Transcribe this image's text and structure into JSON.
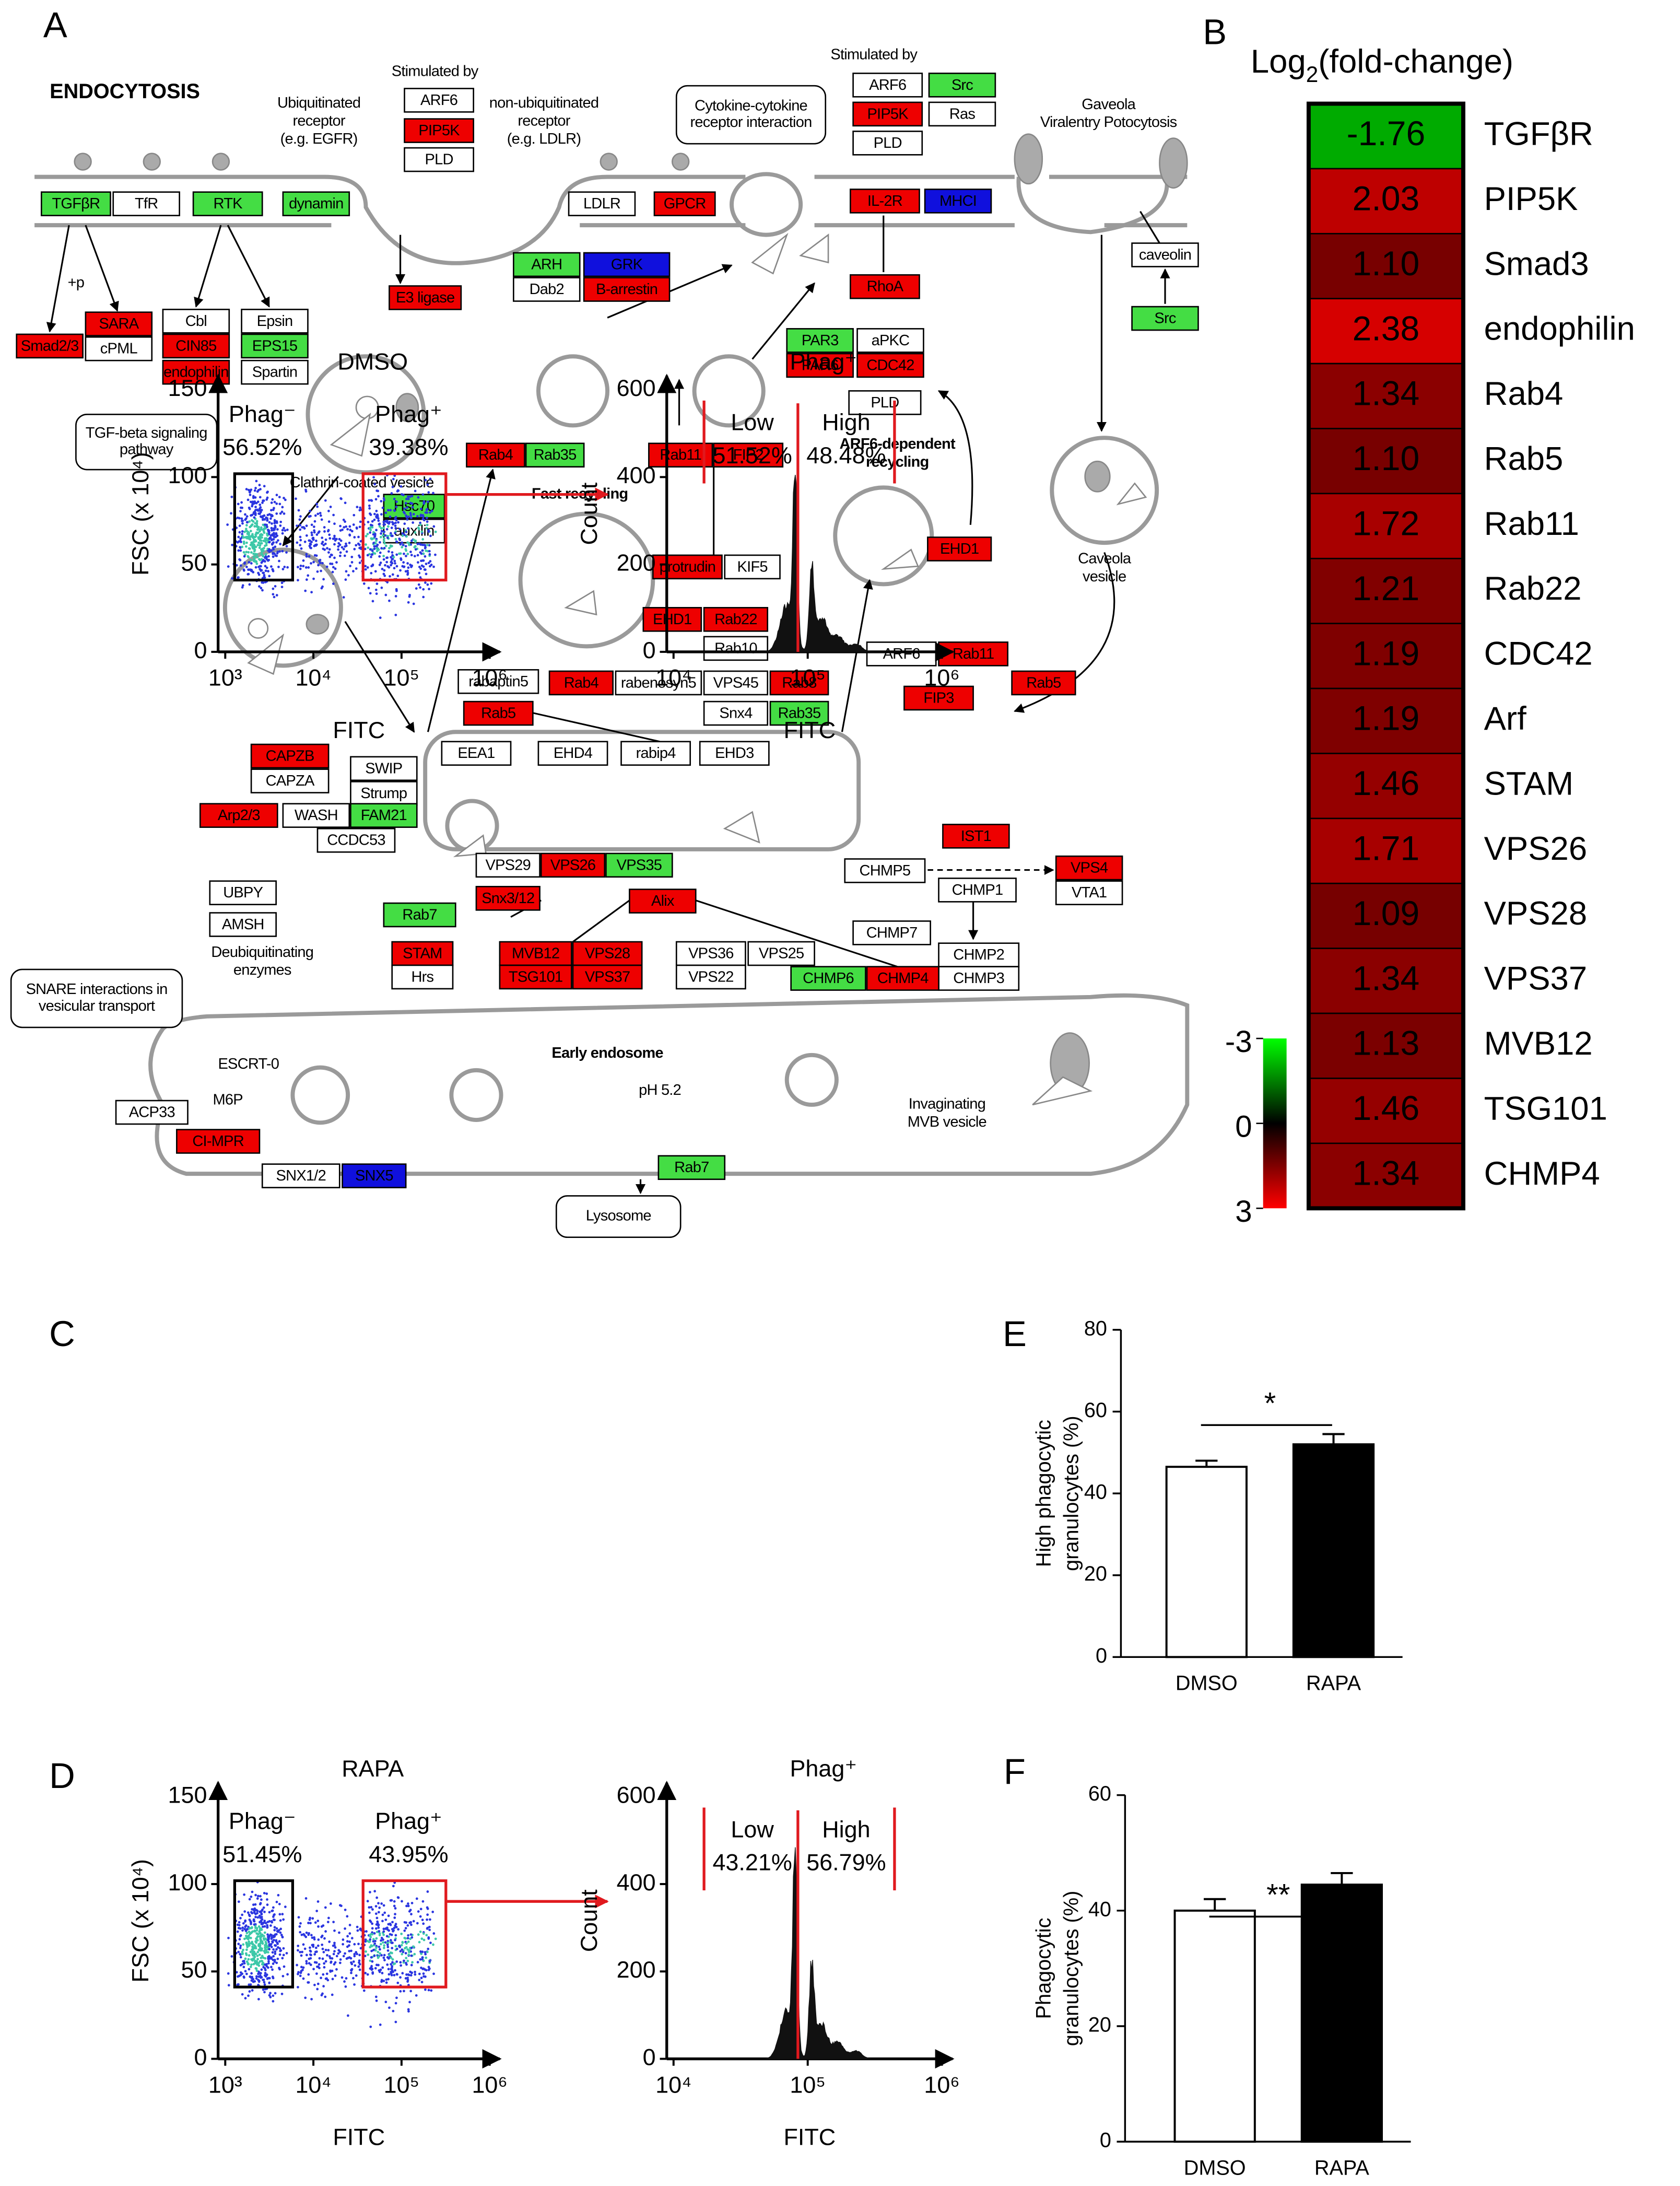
{
  "panel_a": {
    "letter": "A",
    "title": "ENDOCYTOSIS",
    "genes": [
      {
        "label": "TGFβR",
        "color": "#44dd44"
      },
      {
        "label": "TfR",
        "color": "#ffffff"
      },
      {
        "label": "RTK",
        "color": "#44dd44"
      },
      {
        "label": "dynamin",
        "color": "#44dd44"
      },
      {
        "label": "ARF6",
        "color": "#ffffff"
      },
      {
        "label": "PIP5K",
        "color": "#ee0000"
      },
      {
        "label": "PLD",
        "color": "#ffffff"
      },
      {
        "label": "LDLR",
        "color": "#ffffff"
      },
      {
        "label": "GPCR",
        "color": "#ee0000"
      },
      {
        "label": "ARH",
        "color": "#44dd44"
      },
      {
        "label": "GRK",
        "color": "#1010dd"
      },
      {
        "label": "Dab2",
        "color": "#ffffff"
      },
      {
        "label": "B-arrestin",
        "color": "#ee0000"
      },
      {
        "label": "E3 ligase",
        "color": "#ee0000"
      },
      {
        "label": "ARF6",
        "color": "#ffffff"
      },
      {
        "label": "Src",
        "color": "#44dd44"
      },
      {
        "label": "PIP5K",
        "color": "#ee0000"
      },
      {
        "label": "Ras",
        "color": "#ffffff"
      },
      {
        "label": "PLD",
        "color": "#ffffff"
      },
      {
        "label": "IL-2R",
        "color": "#ee0000"
      },
      {
        "label": "MHCI",
        "color": "#1010dd"
      },
      {
        "label": "RhoA",
        "color": "#ee0000"
      },
      {
        "label": "caveolin",
        "color": "#ffffff"
      },
      {
        "label": "Src",
        "color": "#44dd44"
      },
      {
        "label": "Smad2/3",
        "color": "#ee0000"
      },
      {
        "label": "SARA",
        "color": "#ee0000"
      },
      {
        "label": "cPML",
        "color": "#ffffff"
      },
      {
        "label": "Cbl",
        "color": "#ffffff"
      },
      {
        "label": "CIN85",
        "color": "#ee0000"
      },
      {
        "label": "endophilin",
        "color": "#ee0000"
      },
      {
        "label": "Epsin",
        "color": "#ffffff"
      },
      {
        "label": "EPS15",
        "color": "#44dd44"
      },
      {
        "label": "Spartin",
        "color": "#ffffff"
      },
      {
        "label": "PAR3",
        "color": "#44dd44"
      },
      {
        "label": "aPKC",
        "color": "#ffffff"
      },
      {
        "label": "PAR6",
        "color": "#ee0000"
      },
      {
        "label": "CDC42",
        "color": "#ee0000"
      },
      {
        "label": "PLD",
        "color": "#ffffff"
      },
      {
        "label": "Rab4",
        "color": "#ee0000"
      },
      {
        "label": "Rab35",
        "color": "#44dd44"
      },
      {
        "label": "Rab11",
        "color": "#ee0000"
      },
      {
        "label": "FIP2",
        "color": "#ee0000"
      },
      {
        "label": "Hsc70",
        "color": "#44dd44"
      },
      {
        "label": "auxilin",
        "color": "#ffffff"
      },
      {
        "label": "protrudin",
        "color": "#ee0000"
      },
      {
        "label": "KIF5",
        "color": "#ffffff"
      },
      {
        "label": "EHD1",
        "color": "#ee0000"
      },
      {
        "label": "EHD1",
        "color": "#ee0000"
      },
      {
        "label": "Rab22",
        "color": "#ee0000"
      },
      {
        "label": "Rab10",
        "color": "#ffffff"
      },
      {
        "label": "ARF6",
        "color": "#ffffff"
      },
      {
        "label": "Rab11",
        "color": "#ee0000"
      },
      {
        "label": "FIP3",
        "color": "#ee0000"
      },
      {
        "label": "Rab5",
        "color": "#ee0000"
      },
      {
        "label": "rabaptin5",
        "color": "#ffffff"
      },
      {
        "label": "Rab4",
        "color": "#ee0000"
      },
      {
        "label": "rabenosyn5",
        "color": "#ffffff"
      },
      {
        "label": "VPS45",
        "color": "#ffffff"
      },
      {
        "label": "Rab8",
        "color": "#ee0000"
      },
      {
        "label": "Rab5",
        "color": "#ee0000"
      },
      {
        "label": "Snx4",
        "color": "#ffffff"
      },
      {
        "label": "Rab35",
        "color": "#44dd44"
      },
      {
        "label": "EEA1",
        "color": "#ffffff"
      },
      {
        "label": "EHD4",
        "color": "#ffffff"
      },
      {
        "label": "rabip4",
        "color": "#ffffff"
      },
      {
        "label": "EHD3",
        "color": "#ffffff"
      },
      {
        "label": "CAPZB",
        "color": "#ee0000"
      },
      {
        "label": "CAPZA",
        "color": "#ffffff"
      },
      {
        "label": "SWIP",
        "color": "#ffffff"
      },
      {
        "label": "Strump",
        "color": "#ffffff"
      },
      {
        "label": "Arp2/3",
        "color": "#ee0000"
      },
      {
        "label": "WASH",
        "color": "#ffffff"
      },
      {
        "label": "FAM21",
        "color": "#44dd44"
      },
      {
        "label": "CCDC53",
        "color": "#ffffff"
      },
      {
        "label": "IST1",
        "color": "#ee0000"
      },
      {
        "label": "CHMP5",
        "color": "#ffffff"
      },
      {
        "label": "VPS4",
        "color": "#ee0000"
      },
      {
        "label": "CHMP1",
        "color": "#ffffff"
      },
      {
        "label": "VTA1",
        "color": "#ffffff"
      },
      {
        "label": "VPS29",
        "color": "#ffffff"
      },
      {
        "label": "VPS26",
        "color": "#ee0000"
      },
      {
        "label": "VPS35",
        "color": "#44dd44"
      },
      {
        "label": "UBPY",
        "color": "#ffffff"
      },
      {
        "label": "Snx3/12",
        "color": "#ee0000"
      },
      {
        "label": "Alix",
        "color": "#ee0000"
      },
      {
        "label": "AMSH",
        "color": "#ffffff"
      },
      {
        "label": "Rab7",
        "color": "#44dd44"
      },
      {
        "label": "CHMP7",
        "color": "#ffffff"
      },
      {
        "label": "STAM",
        "color": "#ee0000"
      },
      {
        "label": "Hrs",
        "color": "#ffffff"
      },
      {
        "label": "MVB12",
        "color": "#ee0000"
      },
      {
        "label": "VPS28",
        "color": "#ee0000"
      },
      {
        "label": "TSG101",
        "color": "#ee0000"
      },
      {
        "label": "VPS37",
        "color": "#ee0000"
      },
      {
        "label": "VPS36",
        "color": "#ffffff"
      },
      {
        "label": "VPS25",
        "color": "#ffffff"
      },
      {
        "label": "VPS22",
        "color": "#ffffff"
      },
      {
        "label": "CHMP2",
        "color": "#ffffff"
      },
      {
        "label": "CHMP3",
        "color": "#ffffff"
      },
      {
        "label": "CHMP6",
        "color": "#44dd44"
      },
      {
        "label": "CHMP4",
        "color": "#ee0000"
      },
      {
        "label": "ACP33",
        "color": "#ffffff"
      },
      {
        "label": "CI-MPR",
        "color": "#ee0000"
      },
      {
        "label": "SNX1/2",
        "color": "#ffffff"
      },
      {
        "label": "SNX5",
        "color": "#1010dd"
      },
      {
        "label": "Rab7",
        "color": "#44dd44"
      }
    ],
    "pathways": [
      {
        "lines": [
          "Cytokine-cytokine",
          "receptor interaction"
        ]
      },
      {
        "lines": [
          "TGF-beta signaling",
          "pathway"
        ]
      },
      {
        "lines": [
          "SNARE interactions in",
          "vesicular transport"
        ]
      },
      {
        "lines": [
          "Lysosome"
        ]
      }
    ],
    "notes": [
      {
        "lines": [
          "Stimulated by"
        ]
      },
      {
        "lines": [
          "Ubiquitinated",
          "receptor",
          "(e.g. EGFR)"
        ]
      },
      {
        "lines": [
          "non-ubiquitinated",
          "receptor",
          "(e.g. LDLR)"
        ]
      },
      {
        "lines": [
          "Stimulated by"
        ]
      },
      {
        "lines": [
          "Gaveola",
          "Viralentry Potocytosis"
        ]
      },
      {
        "lines": [
          "+p"
        ]
      },
      {
        "lines": [
          "Clathrin-coated vesicle"
        ]
      },
      {
        "lines": [
          "Fast recycling"
        ]
      },
      {
        "lines": [
          "ARF6-dependent",
          "recycling"
        ]
      },
      {
        "lines": [
          "Caveola",
          "vesicle"
        ]
      },
      {
        "lines": [
          "Deubiquitinating",
          "enzymes"
        ]
      },
      {
        "lines": [
          "ESCRT-0"
        ]
      },
      {
        "lines": [
          "M6P"
        ]
      },
      {
        "lines": [
          "Early endosome"
        ]
      },
      {
        "lines": [
          "pH 5.2"
        ]
      },
      {
        "lines": [
          "Invaginating",
          "MVB vesicle"
        ]
      }
    ]
  },
  "panel_b": {
    "letter": "B",
    "title": {
      "base": "Log",
      "sub": "2",
      "rest": "(fold-change)"
    },
    "genes": [
      "TGFβR",
      "PIP5K",
      "Smad3",
      "endophilin",
      "Rab4",
      "Rab5",
      "Rab11",
      "Rab22",
      "CDC42",
      "Arf",
      "STAM",
      "VPS26",
      "VPS28",
      "VPS37",
      "MVB12",
      "TSG101",
      "CHMP4"
    ],
    "values": [
      -1.76,
      2.03,
      1.1,
      2.38,
      1.34,
      1.1,
      1.72,
      1.21,
      1.19,
      1.19,
      1.46,
      1.71,
      1.09,
      1.34,
      1.13,
      1.46,
      1.34
    ],
    "value_labels": [
      "-1.76",
      "2.03",
      "1.10",
      "2.38",
      "1.34",
      "1.10",
      "1.72",
      "1.21",
      "1.19",
      "1.19",
      "1.46",
      "1.71",
      "1.09",
      "1.34",
      "1.13",
      "1.46",
      "1.34"
    ],
    "colorbar": {
      "lim": [
        -3,
        3
      ],
      "ticks": [
        -3,
        0,
        3
      ],
      "colors": [
        "#00ff00",
        "#000000",
        "#ff0000"
      ]
    }
  },
  "flow": [
    {
      "letter": "C",
      "scatter": {
        "title": "DMSO",
        "xlabel": "FITC",
        "ylabel": "FSC (x 10⁴)",
        "xscale": "log",
        "xlim": [
          830,
          1300000
        ],
        "ylim": [
          0,
          158
        ],
        "xticks": [
          {
            "value": 1000,
            "label": "10³"
          },
          {
            "value": 10000,
            "label": "10⁴"
          },
          {
            "value": 100000,
            "label": "10⁵"
          },
          {
            "value": 1000000,
            "label": "10⁶"
          }
        ],
        "yticks": [
          0,
          50,
          100,
          150
        ],
        "gates": [
          {
            "name": "Phag⁻",
            "percent": "56.52%",
            "color": "#000000"
          },
          {
            "name": "Phag⁺",
            "percent": "39.38%",
            "color": "#e0191e"
          }
        ]
      },
      "histogram": {
        "title": "Phag⁺",
        "xlabel": "FITC",
        "ylabel": "Count",
        "xscale": "log",
        "xlim": [
          8900,
          1200000
        ],
        "ylim": [
          0,
          632
        ],
        "xticks": [
          {
            "value": 10000,
            "label": "10⁴"
          },
          {
            "value": 100000,
            "label": "10⁵"
          },
          {
            "value": 1000000,
            "label": "10⁶"
          }
        ],
        "yticks": [
          0,
          200,
          400,
          600
        ],
        "gate_color": "#e0191e",
        "gates": [
          {
            "name": "Low",
            "percent": "51.52%"
          },
          {
            "name": "High",
            "percent": "48.48%"
          }
        ]
      }
    },
    {
      "letter": "D",
      "scatter": {
        "title": "RAPA",
        "xlabel": "FITC",
        "ylabel": "FSC (x 10⁴)",
        "xscale": "log",
        "xlim": [
          830,
          1300000
        ],
        "ylim": [
          0,
          158
        ],
        "xticks": [
          {
            "value": 1000,
            "label": "10³"
          },
          {
            "value": 10000,
            "label": "10⁴"
          },
          {
            "value": 100000,
            "label": "10⁵"
          },
          {
            "value": 1000000,
            "label": "10⁶"
          }
        ],
        "yticks": [
          0,
          50,
          100,
          150
        ],
        "gates": [
          {
            "name": "Phag⁻",
            "percent": "51.45%",
            "color": "#000000"
          },
          {
            "name": "Phag⁺",
            "percent": "43.95%",
            "color": "#e0191e"
          }
        ]
      },
      "histogram": {
        "title": "Phag⁺",
        "xlabel": "FITC",
        "ylabel": "Count",
        "xscale": "log",
        "xlim": [
          8900,
          1200000
        ],
        "ylim": [
          0,
          632
        ],
        "xticks": [
          {
            "value": 10000,
            "label": "10⁴"
          },
          {
            "value": 100000,
            "label": "10⁵"
          },
          {
            "value": 1000000,
            "label": "10⁶"
          }
        ],
        "yticks": [
          0,
          200,
          400,
          600
        ],
        "gate_color": "#e0191e",
        "gates": [
          {
            "name": "Low",
            "percent": "43.21%"
          },
          {
            "name": "High",
            "percent": "56.79%"
          }
        ]
      }
    }
  ],
  "bars": [
    {
      "letter": "E",
      "type": "bar",
      "ylabel": [
        "High phagocytic",
        "granulocytes (%)"
      ],
      "categories": [
        "DMSO",
        "RAPA"
      ],
      "values": [
        46.5,
        52
      ],
      "errors": [
        1.5,
        2.5
      ],
      "colors": [
        "#ffffff",
        "#000000"
      ],
      "ylim": [
        0,
        80
      ],
      "yticks": [
        0,
        20,
        40,
        60,
        80
      ],
      "significance": "*"
    },
    {
      "letter": "F",
      "type": "bar",
      "ylabel": [
        "Phagocytic",
        "granulocytes (%)"
      ],
      "categories": [
        "DMSO",
        "RAPA"
      ],
      "values": [
        40,
        44.5
      ],
      "errors": [
        2,
        2
      ],
      "colors": [
        "#ffffff",
        "#000000"
      ],
      "ylim": [
        0,
        60
      ],
      "yticks": [
        0,
        20,
        40,
        60
      ],
      "significance": "**"
    }
  ]
}
